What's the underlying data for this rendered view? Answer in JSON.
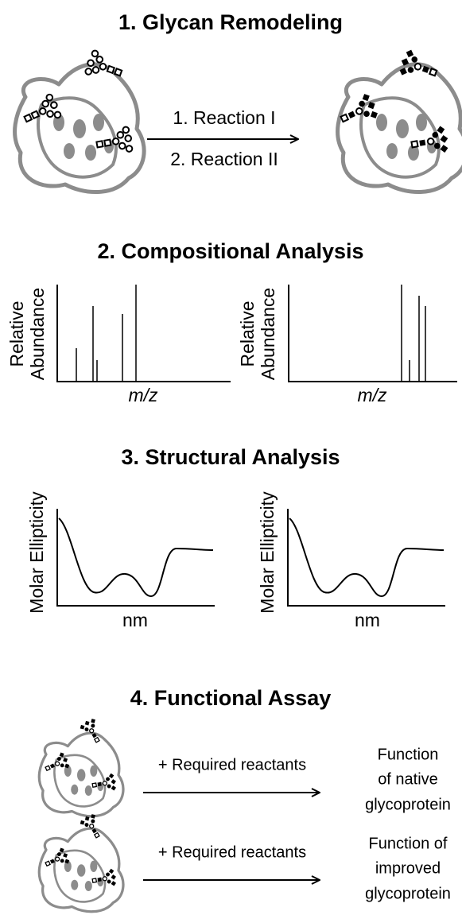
{
  "sections": [
    {
      "title": "1. Glycan Remodeling",
      "steps": [
        "1. Reaction I",
        "2. Reaction II"
      ]
    },
    {
      "title": "2. Compositional Analysis",
      "panels": [
        {
          "y_label": [
            "Relative",
            "Abundance"
          ],
          "x_label": "m/z"
        },
        {
          "y_label": [
            "Relative",
            "Abundance"
          ],
          "x_label": "m/z"
        }
      ]
    },
    {
      "title": "3. Structural Analysis",
      "panels": [
        {
          "y_label": "Molar Ellipticity",
          "x_label": "nm"
        },
        {
          "y_label": "Molar Ellipticity",
          "x_label": "nm"
        }
      ]
    },
    {
      "title": "4. Functional Assay",
      "rows": [
        {
          "reagent": "+ Required reactants",
          "result": [
            "Function",
            "of native",
            "glycoprotein"
          ]
        },
        {
          "reagent": "+ Required reactants",
          "result": [
            "Function of",
            "improved",
            "glycoprotein"
          ]
        }
      ]
    }
  ]
}
